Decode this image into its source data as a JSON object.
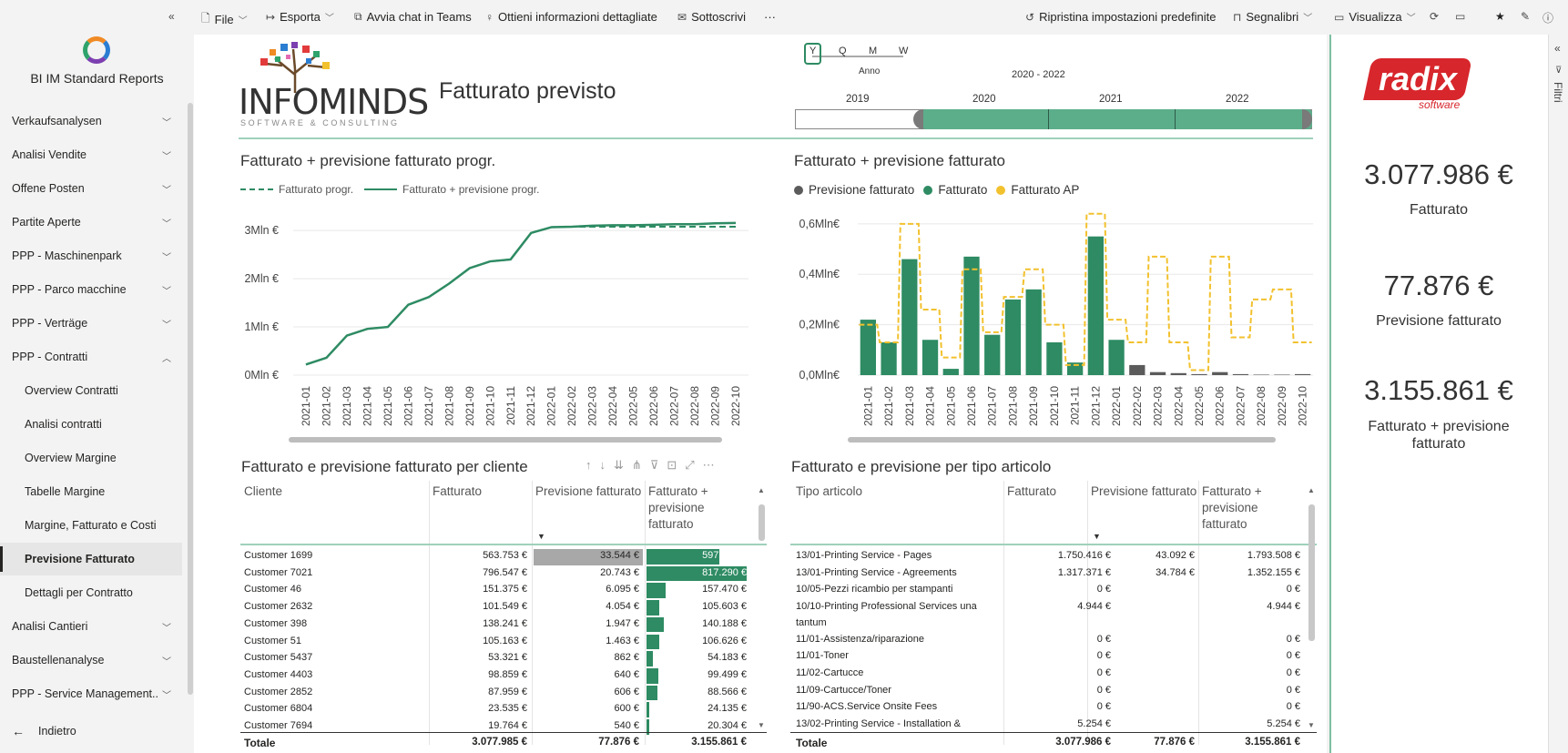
{
  "topbar": {
    "file": "File",
    "export": "Esporta",
    "teams": "Avvia chat in Teams",
    "insights": "Ottieni informazioni dettagliate",
    "subscribe": "Sottoscrivi",
    "more": "···",
    "reset": "Ripristina impostazioni predefinite",
    "bookmarks": "Segnalibri",
    "view": "Visualizza"
  },
  "sidebar": {
    "app_title": "BI IM Standard Reports",
    "items": [
      {
        "label": "Verkaufsanalysen",
        "chevron": "down"
      },
      {
        "label": "Analisi Vendite",
        "chevron": "down"
      },
      {
        "label": "Offene Posten",
        "chevron": "down"
      },
      {
        "label": "Partite Aperte",
        "chevron": "down"
      },
      {
        "label": "PPP - Maschinenpark",
        "chevron": "down"
      },
      {
        "label": "PPP - Parco macchine",
        "chevron": "down"
      },
      {
        "label": "PPP - Verträge",
        "chevron": "down"
      },
      {
        "label": "PPP - Contratti",
        "chevron": "up"
      },
      {
        "label": "Overview Contratti",
        "sub": true
      },
      {
        "label": "Analisi contratti",
        "sub": true
      },
      {
        "label": "Overview Margine",
        "sub": true
      },
      {
        "label": "Tabelle Margine",
        "sub": true
      },
      {
        "label": "Margine, Fatturato e Costi",
        "sub": true
      },
      {
        "label": "Previsione Fatturato",
        "sub": true,
        "active": true
      },
      {
        "label": "Dettagli per Contratto",
        "sub": true
      },
      {
        "label": "Analisi Cantieri",
        "chevron": "down"
      },
      {
        "label": "Baustellenanalyse",
        "chevron": "down"
      },
      {
        "label": "PPP - Service Management...",
        "chevron": "down"
      }
    ],
    "back": "Indietro"
  },
  "header": {
    "brand_main": "INFOMINDS",
    "brand_sub": "SOFTWARE & CONSULTING",
    "title": "Fatturato previsto"
  },
  "slicer": {
    "levels": [
      "Y",
      "Q",
      "M",
      "W"
    ],
    "level_caption": "Anno",
    "range_text": "2020 - 2022",
    "years": [
      "2019",
      "2020",
      "2021",
      "2022"
    ],
    "selected_from_year": "2020",
    "selected_to_year": "2022"
  },
  "line_chart": {
    "title": "Fatturato + previsione fatturato progr.",
    "legend": [
      "Fatturato progr.",
      "Fatturato + previsione progr."
    ]
  },
  "bar_chart": {
    "title": "Fatturato + previsione fatturato",
    "legend": [
      "Previsione fatturato",
      "Fatturato",
      "Fatturato AP"
    ]
  },
  "chart_data": [
    {
      "type": "line",
      "title": "Fatturato + previsione fatturato progr.",
      "x": [
        "2021-01",
        "2021-02",
        "2021-03",
        "2021-04",
        "2021-05",
        "2021-06",
        "2021-07",
        "2021-08",
        "2021-09",
        "2021-10",
        "2021-11",
        "2021-12",
        "2022-01",
        "2022-02",
        "2022-03",
        "2022-04",
        "2022-05",
        "2022-06",
        "2022-07",
        "2022-08",
        "2022-09",
        "2022-10"
      ],
      "yticks": [
        "0Mln €",
        "1Mln €",
        "2Mln €",
        "3Mln €"
      ],
      "ylim": [
        0,
        3.4
      ],
      "series": [
        {
          "name": "Fatturato + previsione progr.",
          "style": "solid",
          "values": [
            0.22,
            0.36,
            0.82,
            0.96,
            1.0,
            1.46,
            1.62,
            1.9,
            2.22,
            2.36,
            2.4,
            2.95,
            3.07,
            3.08,
            3.1,
            3.11,
            3.11,
            3.12,
            3.13,
            3.13,
            3.15,
            3.156
          ]
        },
        {
          "name": "Fatturato progr.",
          "style": "dashed",
          "values": [
            0.22,
            0.36,
            0.82,
            0.96,
            1.0,
            1.46,
            1.62,
            1.9,
            2.22,
            2.36,
            2.4,
            2.95,
            3.07,
            3.078,
            3.078,
            3.078,
            3.078,
            3.078,
            3.078,
            3.078,
            3.078,
            3.078
          ]
        }
      ],
      "colors": {
        "line": "#2e8b63"
      },
      "grid": true
    },
    {
      "type": "bar",
      "title": "Fatturato + previsione fatturato",
      "x": [
        "2021-01",
        "2021-02",
        "2021-03",
        "2021-04",
        "2021-05",
        "2021-06",
        "2021-07",
        "2021-08",
        "2021-09",
        "2021-10",
        "2021-11",
        "2021-12",
        "2022-01",
        "2022-02",
        "2022-03",
        "2022-04",
        "2022-05",
        "2022-06",
        "2022-07",
        "2022-08",
        "2022-09",
        "2022-10"
      ],
      "yticks": [
        "0,0Mln€",
        "0,2Mln€",
        "0,4Mln€",
        "0,6Mln€"
      ],
      "ylim": [
        0,
        0.65
      ],
      "series": [
        {
          "name": "Fatturato",
          "values": [
            0.22,
            0.13,
            0.46,
            0.14,
            0.025,
            0.47,
            0.16,
            0.3,
            0.34,
            0.13,
            0.05,
            0.55,
            0.14,
            0,
            0,
            0,
            0,
            0,
            0,
            0,
            0,
            0
          ]
        },
        {
          "name": "Previsione fatturato",
          "values": [
            0,
            0,
            0,
            0,
            0,
            0,
            0,
            0,
            0,
            0,
            0,
            0,
            0,
            0.04,
            0.012,
            0.008,
            0.004,
            0.012,
            0.004,
            0.002,
            0.002,
            0.004
          ]
        },
        {
          "name": "Fatturato AP",
          "style": "dashed-step",
          "values": [
            0.2,
            0.13,
            0.6,
            0.26,
            0.07,
            0.42,
            0.17,
            0.31,
            0.42,
            0.2,
            0.04,
            0.64,
            0.22,
            0.13,
            0.47,
            0.13,
            0.02,
            0.47,
            0.15,
            0.3,
            0.34,
            0.13
          ]
        }
      ],
      "colors": {
        "fatturato": "#2e8b63",
        "previsione": "#5b5b5b",
        "ap": "#f2c12e"
      },
      "grid": true
    }
  ],
  "table_clienti": {
    "title": "Fatturato e previsione fatturato per cliente",
    "headers": [
      "Cliente",
      "Fatturato",
      "Previsione fatturato",
      "Fatturato + previsione fatturato"
    ],
    "rows": [
      {
        "c": "Customer 1699",
        "f": "563.753 €",
        "p": "33.544 €",
        "t": "597.297 €",
        "bar": 0.73
      },
      {
        "c": "Customer 7021",
        "f": "796.547 €",
        "p": "20.743 €",
        "t": "817.290 €",
        "bar": 1.0
      },
      {
        "c": "Customer 46",
        "f": "151.375 €",
        "p": "6.095 €",
        "t": "157.470 €",
        "bar": 0.19
      },
      {
        "c": "Customer 2632",
        "f": "101.549 €",
        "p": "4.054 €",
        "t": "105.603 €",
        "bar": 0.13
      },
      {
        "c": "Customer 398",
        "f": "138.241 €",
        "p": "1.947 €",
        "t": "140.188 €",
        "bar": 0.17
      },
      {
        "c": "Customer 51",
        "f": "105.163 €",
        "p": "1.463 €",
        "t": "106.626 €",
        "bar": 0.13
      },
      {
        "c": "Customer 5437",
        "f": "53.321 €",
        "p": "862 €",
        "t": "54.183 €",
        "bar": 0.066
      },
      {
        "c": "Customer 4403",
        "f": "98.859 €",
        "p": "640 €",
        "t": "99.499 €",
        "bar": 0.12
      },
      {
        "c": "Customer 2852",
        "f": "87.959 €",
        "p": "606 €",
        "t": "88.566 €",
        "bar": 0.11
      },
      {
        "c": "Customer 6804",
        "f": "23.535 €",
        "p": "600 €",
        "t": "24.135 €",
        "bar": 0.03
      },
      {
        "c": "Customer 7694",
        "f": "19.764 €",
        "p": "540 €",
        "t": "20.304 €",
        "bar": 0.025
      }
    ],
    "total": {
      "c": "Totale",
      "f": "3.077.985 €",
      "p": "77.876 €",
      "t": "3.155.861 €"
    }
  },
  "table_articoli": {
    "title": "Fatturato e previsione per tipo articolo",
    "headers": [
      "Tipo articolo",
      "Fatturato",
      "Previsione fatturato",
      "Fatturato + previsione fatturato"
    ],
    "rows": [
      {
        "c": "13/01-Printing Service - Pages",
        "c2": "",
        "f": "1.750.416 €",
        "p": "43.092 €",
        "t": "1.793.508 €"
      },
      {
        "c": "13/01-Printing Service - Agreements",
        "c2": "",
        "f": "1.317.371 €",
        "p": "34.784 €",
        "t": "1.352.155 €"
      },
      {
        "c": "10/05-Pezzi ricambio per stampanti",
        "c2": "",
        "f": "0 €",
        "p": "",
        "t": "0 €"
      },
      {
        "c": "10/10-Printing Professional Services una",
        "c2": "tantum",
        "f": "4.944 €",
        "p": "",
        "t": "4.944 €"
      },
      {
        "c": "11/01-Assistenza/riparazione",
        "c2": "",
        "f": "0 €",
        "p": "",
        "t": "0 €"
      },
      {
        "c": "11/01-Toner",
        "c2": "",
        "f": "0 €",
        "p": "",
        "t": "0 €"
      },
      {
        "c": "11/02-Cartucce",
        "c2": "",
        "f": "0 €",
        "p": "",
        "t": "0 €"
      },
      {
        "c": "11/09-Cartucce/Toner",
        "c2": "",
        "f": "0 €",
        "p": "",
        "t": "0 €"
      },
      {
        "c": "11/90-ACS.Service Onsite Fees",
        "c2": "",
        "f": "0 €",
        "p": "",
        "t": "0 €"
      },
      {
        "c": "13/02-Printing Service - Installation &",
        "c2": "",
        "f": "5.254 €",
        "p": "",
        "t": "5.254 €"
      }
    ],
    "total": {
      "c": "Totale",
      "f": "3.077.986 €",
      "p": "77.876 €",
      "t": "3.155.861 €"
    }
  },
  "kpis": [
    {
      "value": "3.077.986 €",
      "label": "Fatturato"
    },
    {
      "value": "77.876 €",
      "label": "Previsione fatturato"
    },
    {
      "value": "3.155.861 €",
      "label": "Fatturato + previsione fatturato"
    }
  ],
  "partner_logo": {
    "main": "radix",
    "sub": "software"
  },
  "filters_label": "Filtri"
}
